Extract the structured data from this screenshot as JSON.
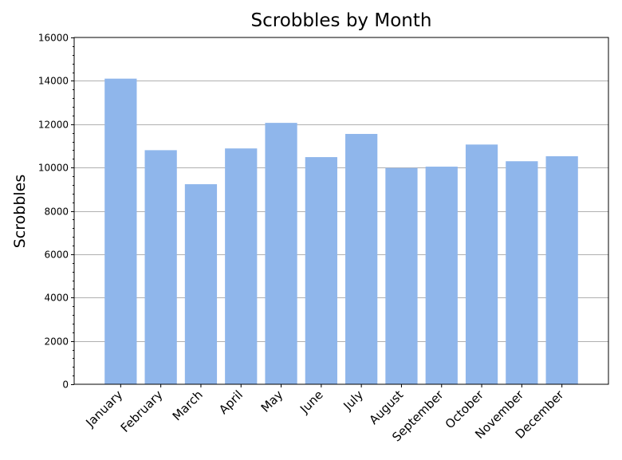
{
  "chart_data": {
    "type": "bar",
    "title": "Scrobbles by Month",
    "xlabel": "",
    "ylabel": "Scrobbles",
    "categories": [
      "January",
      "February",
      "March",
      "April",
      "May",
      "June",
      "July",
      "August",
      "September",
      "October",
      "November",
      "December"
    ],
    "values": [
      14100,
      10800,
      9230,
      10880,
      12060,
      10480,
      11550,
      9980,
      10040,
      11060,
      10290,
      10520
    ],
    "ylim": [
      0,
      16000
    ],
    "yticks": [
      0,
      2000,
      4000,
      6000,
      8000,
      10000,
      12000,
      14000,
      16000
    ],
    "grid": "horizontal",
    "bar_color": "#8fb6eb",
    "grid_color": "#b0b0b0"
  }
}
